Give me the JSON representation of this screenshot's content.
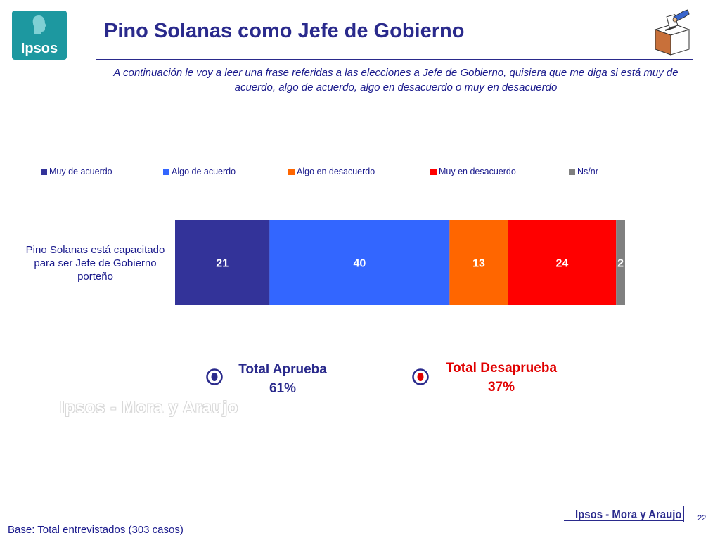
{
  "brand": {
    "logo_text": "Ipsos",
    "footer": "Ipsos - Mora y Araujo",
    "watermark": "Ipsos - Mora y Araujo"
  },
  "header": {
    "title": "Pino Solanas como Jefe de Gobierno",
    "subtitle": "A continuación le voy a leer una frase referidas a las elecciones a Jefe de Gobierno, quisiera que me diga si está muy de acuerdo, algo de acuerdo, algo en desacuerdo o muy en desacuerdo"
  },
  "chart_data": {
    "type": "bar",
    "orientation": "horizontal-stacked",
    "categories": [
      "Pino Solanas está capacitado para ser Jefe de Gobierno porteño"
    ],
    "series": [
      {
        "name": "Muy de acuerdo",
        "values": [
          21
        ],
        "color": "#333399"
      },
      {
        "name": "Algo de acuerdo",
        "values": [
          40
        ],
        "color": "#3366ff"
      },
      {
        "name": "Algo en desacuerdo",
        "values": [
          13
        ],
        "color": "#ff6600"
      },
      {
        "name": "Muy en desacuerdo",
        "values": [
          24
        ],
        "color": "#ff0000"
      },
      {
        "name": "Ns/nr",
        "values": [
          2
        ],
        "color": "#808080"
      }
    ],
    "legend_position": "top",
    "grid": false
  },
  "summary": {
    "approve": {
      "label": "Total Aprueba",
      "value": "61%",
      "color": "#2a2a8c"
    },
    "disapprove": {
      "label": "Total Desaprueba",
      "value": "37%",
      "color": "#e00000"
    }
  },
  "footer": {
    "base": "Base: Total entrevistados (303 casos)",
    "page": "22"
  }
}
